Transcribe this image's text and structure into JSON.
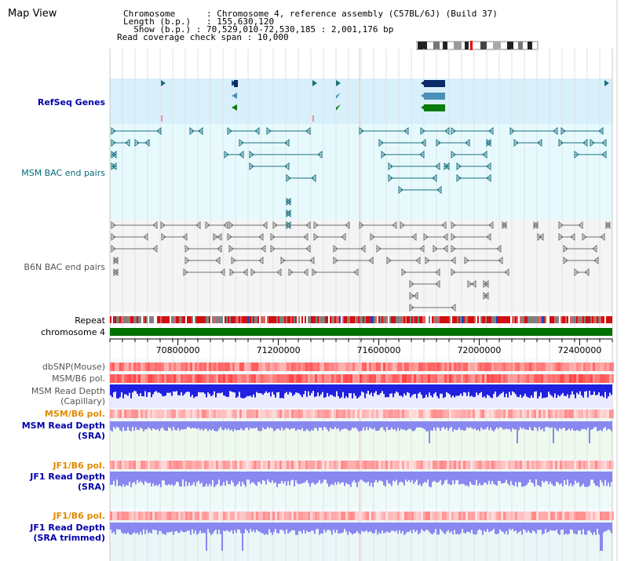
{
  "page_title": "Map View",
  "info": {
    "chromosome_label": "Chromosome",
    "chromosome_value": "Chromosome 4, reference assembly (C57BL/6J) (Build 37)",
    "length_label": "Length (b.p.)",
    "length_value": "155,630,120",
    "show_label": "Show (b.p.)",
    "show_value": "70,529,010-72,530,185 : 2,001,176 bp",
    "read_cov_label": "Read coverage check span",
    "read_cov_value": "10,000"
  },
  "tracks": {
    "refseq": "RefSeq Genes",
    "msm_bac": "MSM BAC end pairs",
    "b6n_bac": "B6N BAC end pairs",
    "repeat": "Repeat",
    "chromosome": "chromosome 4",
    "dbsnp": "dbSNP(Mouse)",
    "msm_b6_pol_1": "MSM/B6 pol.",
    "msm_read_depth_cap_1": "MSM Read Depth",
    "msm_read_depth_cap_2": "(Capillary)",
    "msm_b6_pol_2": "MSM/B6 pol.",
    "msm_read_depth_sra_1": "MSM Read Depth",
    "msm_read_depth_sra_2": "(SRA)",
    "jf1_b6_pol_1": "JF1/B6 pol.",
    "jf1_read_depth_sra_1": "JF1 Read Depth",
    "jf1_read_depth_sra_2": "(SRA)",
    "jf1_b6_pol_2": "JF1/B6 pol.",
    "jf1_read_depth_trim_1": "JF1 Read Depth",
    "jf1_read_depth_trim_2": "(SRA trimmed)"
  },
  "axis": {
    "ticks": [
      "70800000",
      "71200000",
      "71600000",
      "72000000",
      "72400000"
    ],
    "tick_values": [
      70800000,
      71200000,
      71600000,
      72000000,
      72400000
    ],
    "start_bp": 70529010,
    "end_bp": 72530185
  },
  "colors": {
    "refseq_bg": "#d8f0fb",
    "bac_bg": "#e6fafd",
    "b6n_bg": "#f4f4f4",
    "teal_feature": "#1a6f7f",
    "gray_feature": "#707070",
    "chromosome_bar": "#007000",
    "gene_navy": "#0a2a6a",
    "gene_steel": "#4a90b8",
    "gene_green": "#0a7a0a",
    "depth_blue": "#2020e0",
    "depth_light": "#8888f0"
  }
}
